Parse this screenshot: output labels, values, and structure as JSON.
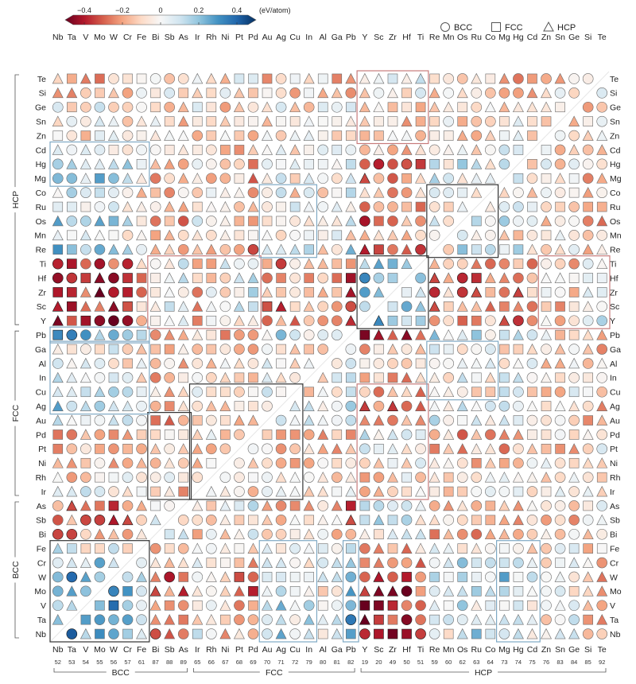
{
  "chart_data": {
    "type": "heatmap",
    "title": "",
    "elements": [
      "Nb",
      "Ta",
      "V",
      "Mo",
      "W",
      "Cr",
      "Fe",
      "Bi",
      "Sb",
      "As",
      "Ir",
      "Rh",
      "Ni",
      "Pt",
      "Pd",
      "Au",
      "Ag",
      "Cu",
      "In",
      "Al",
      "Ga",
      "Pb",
      "Y",
      "Sc",
      "Zr",
      "Hf",
      "Ti",
      "Re",
      "Mn",
      "Os",
      "Ru",
      "Co",
      "Mg",
      "Hg",
      "Cd",
      "Zn",
      "Sn",
      "Ge",
      "Si",
      "Te"
    ],
    "atomic_numbers": [
      "52",
      "53",
      "54",
      "55",
      "56",
      "57",
      "61",
      "87",
      "88",
      "89",
      "65",
      "66",
      "67",
      "68",
      "69",
      "70",
      "71",
      "72",
      "79",
      "80",
      "81",
      "82",
      "19",
      "20",
      "49",
      "50",
      "51",
      "59",
      "60",
      "62",
      "63",
      "64",
      "73",
      "74",
      "75",
      "76",
      "83",
      "84",
      "85",
      "92"
    ],
    "x_groups": [
      {
        "label": "BCC",
        "start": 0,
        "end": 9
      },
      {
        "label": "FCC",
        "start": 10,
        "end": 21
      },
      {
        "label": "HCP",
        "start": 22,
        "end": 39
      }
    ],
    "y_groups": [
      {
        "label": "BCC",
        "start": 0,
        "end": 9
      },
      {
        "label": "FCC",
        "start": 10,
        "end": 21
      },
      {
        "label": "HCP",
        "start": 22,
        "end": 39
      }
    ],
    "colorbar": {
      "label": "(eV/atom)",
      "ticks": [
        "−0.4",
        "−0.2",
        "0",
        "0.2",
        "0.4"
      ],
      "range": [
        -0.5,
        0.5
      ],
      "colors": [
        "#67001f",
        "#b2182b",
        "#d6604d",
        "#f4a582",
        "#fddbc7",
        "#f7f7f7",
        "#d1e5f0",
        "#92c5de",
        "#4393c3",
        "#2166ac",
        "#053061"
      ]
    },
    "legend": {
      "placement": "top-right",
      "items": [
        {
          "shape": "circle",
          "label": "BCC"
        },
        {
          "shape": "square",
          "label": "FCC"
        },
        {
          "shape": "triangle",
          "label": "HCP"
        }
      ]
    },
    "highlight_colors": {
      "blue": "#7fa9c4",
      "red": "#c77b7b",
      "dark": "#333333"
    },
    "blocks": [
      {
        "x": [
          0,
          6
        ],
        "y": [
          0,
          6
        ],
        "color": "dark"
      },
      {
        "x": [
          7,
          9
        ],
        "y": [
          10,
          15
        ],
        "color": "dark"
      },
      {
        "x": [
          10,
          17
        ],
        "y": [
          10,
          17
        ],
        "color": "dark"
      },
      {
        "x": [
          15,
          18
        ],
        "y": [
          0,
          6
        ],
        "color": "blue"
      },
      {
        "x": [
          21,
          21
        ],
        "y": [
          0,
          6
        ],
        "color": "blue"
      },
      {
        "x": [
          22,
          26
        ],
        "y": [
          10,
          17
        ],
        "color": "red"
      },
      {
        "x": [
          22,
          26
        ],
        "y": [
          22,
          26
        ],
        "color": "dark"
      },
      {
        "x": [
          27,
          31
        ],
        "y": [
          27,
          31
        ],
        "color": "dark"
      },
      {
        "x": [
          27,
          31
        ],
        "y": [
          17,
          20
        ],
        "color": "blue"
      },
      {
        "x": [
          32,
          34
        ],
        "y": [
          0,
          6
        ],
        "color": "blue"
      },
      {
        "x": [
          0,
          6
        ],
        "y": [
          16,
          20
        ],
        "color": "blue"
      },
      {
        "x": [
          0,
          6
        ],
        "y": [
          21,
          21
        ],
        "color": "blue"
      },
      {
        "x": [
          0,
          6
        ],
        "y": [
          32,
          34
        ],
        "color": "blue"
      },
      {
        "x": [
          7,
          14
        ],
        "y": [
          22,
          26
        ],
        "color": "red"
      },
      {
        "x": [
          15,
          18
        ],
        "y": [
          27,
          31
        ],
        "color": "blue"
      },
      {
        "x": [
          22,
          26
        ],
        "y": [
          35,
          39
        ],
        "color": "red"
      },
      {
        "x": [
          35,
          39
        ],
        "y": [
          22,
          26
        ],
        "color": "red"
      }
    ],
    "grid": false
  }
}
